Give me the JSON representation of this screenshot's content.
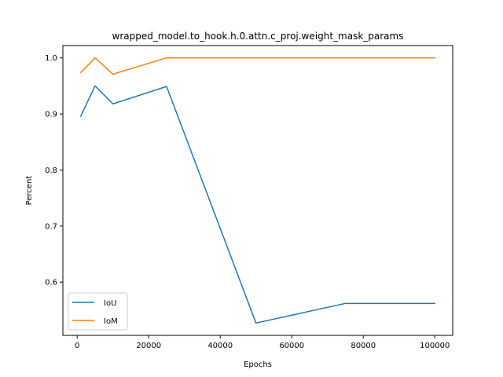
{
  "chart_data": {
    "type": "line",
    "title": "wrapped_model.to_hook.h.0.attn.c_proj.weight_mask_params",
    "xlabel": "Epochs",
    "ylabel": "Percent",
    "xlim": [
      -4000,
      105000
    ],
    "ylim": [
      0.505,
      1.022
    ],
    "xticks": [
      {
        "value": 0,
        "label": "0"
      },
      {
        "value": 20000,
        "label": "20000"
      },
      {
        "value": 40000,
        "label": "40000"
      },
      {
        "value": 60000,
        "label": "60000"
      },
      {
        "value": 80000,
        "label": "80000"
      },
      {
        "value": 100000,
        "label": "100000"
      }
    ],
    "yticks": [
      {
        "value": 0.6,
        "label": "0.6"
      },
      {
        "value": 0.7,
        "label": "0.7"
      },
      {
        "value": 0.8,
        "label": "0.8"
      },
      {
        "value": 0.9,
        "label": "0.9"
      },
      {
        "value": 1.0,
        "label": "1.0"
      }
    ],
    "grid": false,
    "legend_position": "lower-left",
    "series": [
      {
        "name": "IoU",
        "color": "#1f77b4",
        "points": [
          [
            1000,
            0.896
          ],
          [
            5000,
            0.95
          ],
          [
            10000,
            0.918
          ],
          [
            25000,
            0.949
          ],
          [
            50000,
            0.527
          ],
          [
            75000,
            0.562
          ],
          [
            100000,
            0.562
          ]
        ]
      },
      {
        "name": "IoM",
        "color": "#ff7f0e",
        "points": [
          [
            1000,
            0.974
          ],
          [
            5000,
            1.0
          ],
          [
            10000,
            0.971
          ],
          [
            25000,
            1.0
          ],
          [
            50000,
            1.0
          ],
          [
            75000,
            1.0
          ],
          [
            100000,
            1.0
          ]
        ]
      }
    ]
  }
}
